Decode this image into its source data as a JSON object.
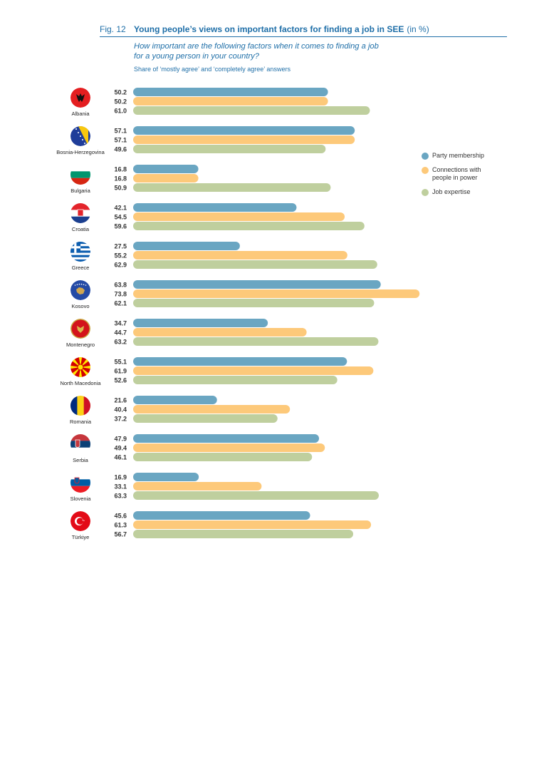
{
  "figure": {
    "label": "Fig. 12",
    "title": "Young people’s views on important factors for finding a job in SEE",
    "unit": "(in %)",
    "question": "How important are the following factors when it comes to finding a job for a young person in your country?",
    "subtitle": "Share of ‘mostly agree’ and ‘completely agree’ answers"
  },
  "legend": [
    {
      "label": "Party membership",
      "color": "#6aa6c2"
    },
    {
      "label": "Connections with people in power",
      "color": "#fdc97a"
    },
    {
      "label": "Job expertise",
      "color": "#bfcf9e"
    }
  ],
  "chart_data": {
    "type": "bar",
    "orientation": "horizontal",
    "title": "Young people’s views on important factors for finding a job in SEE",
    "categories": [
      "Albania",
      "Bosnia-Herzegovina",
      "Bulgaria",
      "Croatia",
      "Greece",
      "Kosovo",
      "Montenegro",
      "North Macedonia",
      "Romania",
      "Serbia",
      "Slovenia",
      "Türkiye"
    ],
    "series": [
      {
        "name": "Party membership",
        "color": "#6aa6c2",
        "values": [
          50.2,
          57.1,
          16.8,
          42.1,
          27.5,
          63.8,
          34.7,
          55.1,
          21.6,
          47.9,
          16.9,
          45.6
        ]
      },
      {
        "name": "Connections with people in power",
        "color": "#fdc97a",
        "values": [
          50.2,
          57.1,
          16.8,
          54.5,
          55.2,
          73.8,
          44.7,
          61.9,
          40.4,
          49.4,
          33.1,
          61.3
        ]
      },
      {
        "name": "Job expertise",
        "color": "#bfcf9e",
        "values": [
          61.0,
          49.6,
          50.9,
          59.6,
          62.9,
          62.1,
          63.2,
          52.6,
          37.2,
          46.1,
          63.3,
          56.7
        ]
      }
    ],
    "value_labels": [
      [
        "50.2",
        "50.2",
        "61.0"
      ],
      [
        "57.1",
        "57.1",
        "49.6"
      ],
      [
        "16.8",
        "16.8",
        "50.9"
      ],
      [
        "42.1",
        "54.5",
        "59.6"
      ],
      [
        "27.5",
        "55.2",
        "62.9"
      ],
      [
        "63.8",
        "73.8",
        "62.1"
      ],
      [
        "34.7",
        "44.7",
        "63.2"
      ],
      [
        "55.1",
        "61.9",
        "52.6"
      ],
      [
        "21.6",
        "40.4",
        "37.2"
      ],
      [
        "47.9",
        "49.4",
        "46.1"
      ],
      [
        "16.9",
        "33.1",
        "63.3"
      ],
      [
        "45.6",
        "61.3",
        "56.7"
      ]
    ],
    "xlim": [
      0,
      100
    ],
    "legend_position": "right",
    "grid": false
  },
  "flags": [
    "albania-flag",
    "bosnia-herzegovina-flag",
    "bulgaria-flag",
    "croatia-flag",
    "greece-flag",
    "kosovo-flag",
    "montenegro-flag",
    "north-macedonia-flag",
    "romania-flag",
    "serbia-flag",
    "slovenia-flag",
    "turkiye-flag"
  ]
}
